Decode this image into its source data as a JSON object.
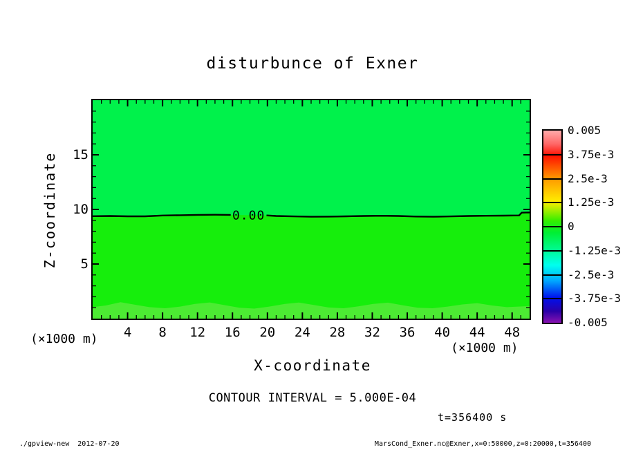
{
  "title": "disturbunce of Exner",
  "plot": {
    "x_axis": {
      "label": "X-coordinate",
      "unit": "(×1000 m)"
    },
    "y_axis": {
      "label": "Z-coordinate",
      "unit": "(×1000 m)"
    }
  },
  "colorbar": {
    "labels": [
      "0.005",
      "3.75e-3",
      "2.5e-3",
      "1.25e-3",
      "0",
      "-1.25e-3",
      "-2.5e-3",
      "-3.75e-3",
      "-0.005"
    ],
    "gradient_stops": [
      [
        "0%",
        "#ffaaaa"
      ],
      [
        "7%",
        "#ff6666"
      ],
      [
        "13%",
        "#ff1100"
      ],
      [
        "25%",
        "#ff9900"
      ],
      [
        "37%",
        "#ffee00"
      ],
      [
        "47%",
        "#33ee00"
      ],
      [
        "53%",
        "#00ef33"
      ],
      [
        "62%",
        "#00fa91"
      ],
      [
        "70%",
        "#00ffee"
      ],
      [
        "78%",
        "#00aaff"
      ],
      [
        "87%",
        "#0011ee"
      ],
      [
        "94%",
        "#2a00a8"
      ],
      [
        "100%",
        "#8812b0"
      ]
    ]
  },
  "annotations": {
    "contour_interval": "CONTOUR INTERVAL = 5.000E-04",
    "time": "t=356400 s"
  },
  "footer": {
    "left": "./gpview-new  2012-07-20",
    "right": "MarsCond_Exner.nc@Exner,x=0:50000,z=0:20000,t=356400"
  },
  "chart_data": {
    "type": "heatmap",
    "subtype": "filled-contour",
    "title": "disturbunce of Exner",
    "xlabel": "X-coordinate (×1000 m)",
    "ylabel": "Z-coordinate (×1000 m)",
    "xlim": [
      0,
      50
    ],
    "ylim": [
      0,
      20
    ],
    "x_ticks": [
      4,
      8,
      12,
      16,
      20,
      24,
      28,
      32,
      36,
      40,
      44,
      48
    ],
    "y_ticks": [
      5,
      10,
      15
    ],
    "x_minor_step": 1,
    "y_minor_step": 1,
    "contour_interval": 0.0005,
    "colorbar_levels": [
      0.005,
      0.00375,
      0.0025,
      0.00125,
      0,
      -0.00125,
      -0.0025,
      -0.00375,
      -0.005
    ],
    "time_seconds": 356400,
    "colors": {
      "fill_above": "#00f24b",
      "fill_below": "#16ee0c",
      "fill_surface": "#4ceb33",
      "line": "#000000"
    },
    "zero_contour": {
      "label": "0.00",
      "label_x": 17.85,
      "label_z": 9.47,
      "points_left": [
        [
          0,
          9.38
        ],
        [
          2,
          9.4
        ],
        [
          4,
          9.37
        ],
        [
          6,
          9.37
        ],
        [
          8,
          9.44
        ],
        [
          10,
          9.47
        ],
        [
          12,
          9.5
        ],
        [
          14,
          9.51
        ],
        [
          15.8,
          9.5
        ]
      ],
      "points_right": [
        [
          19.9,
          9.45
        ],
        [
          21,
          9.4
        ],
        [
          23,
          9.36
        ],
        [
          25,
          9.33
        ],
        [
          27,
          9.34
        ],
        [
          29,
          9.37
        ],
        [
          31,
          9.4
        ],
        [
          33,
          9.42
        ],
        [
          35,
          9.4
        ],
        [
          37,
          9.35
        ],
        [
          39,
          9.33
        ],
        [
          41,
          9.36
        ],
        [
          43,
          9.4
        ],
        [
          45,
          9.42
        ],
        [
          47,
          9.43
        ],
        [
          48.8,
          9.45
        ],
        [
          49.1,
          9.7
        ],
        [
          50,
          9.72
        ]
      ]
    },
    "surface_band": {
      "points": [
        [
          0,
          1.05
        ],
        [
          1.5,
          1.2
        ],
        [
          3.2,
          1.5
        ],
        [
          5,
          1.25
        ],
        [
          6.5,
          1.05
        ],
        [
          8.3,
          0.95
        ],
        [
          10,
          1.1
        ],
        [
          11.7,
          1.35
        ],
        [
          13.4,
          1.48
        ],
        [
          15,
          1.25
        ],
        [
          16.8,
          1.0
        ],
        [
          18.5,
          0.92
        ],
        [
          20.2,
          1.1
        ],
        [
          22,
          1.35
        ],
        [
          23.6,
          1.47
        ],
        [
          25.3,
          1.25
        ],
        [
          27,
          1.02
        ],
        [
          28.7,
          0.95
        ],
        [
          30.4,
          1.12
        ],
        [
          32.1,
          1.35
        ],
        [
          33.8,
          1.46
        ],
        [
          35.5,
          1.22
        ],
        [
          37.2,
          1.0
        ],
        [
          38.9,
          0.95
        ],
        [
          40.6,
          1.1
        ],
        [
          42.3,
          1.3
        ],
        [
          44,
          1.42
        ],
        [
          45.7,
          1.2
        ],
        [
          47.4,
          1.05
        ],
        [
          48.7,
          1.1
        ],
        [
          50,
          1.15
        ]
      ]
    }
  }
}
